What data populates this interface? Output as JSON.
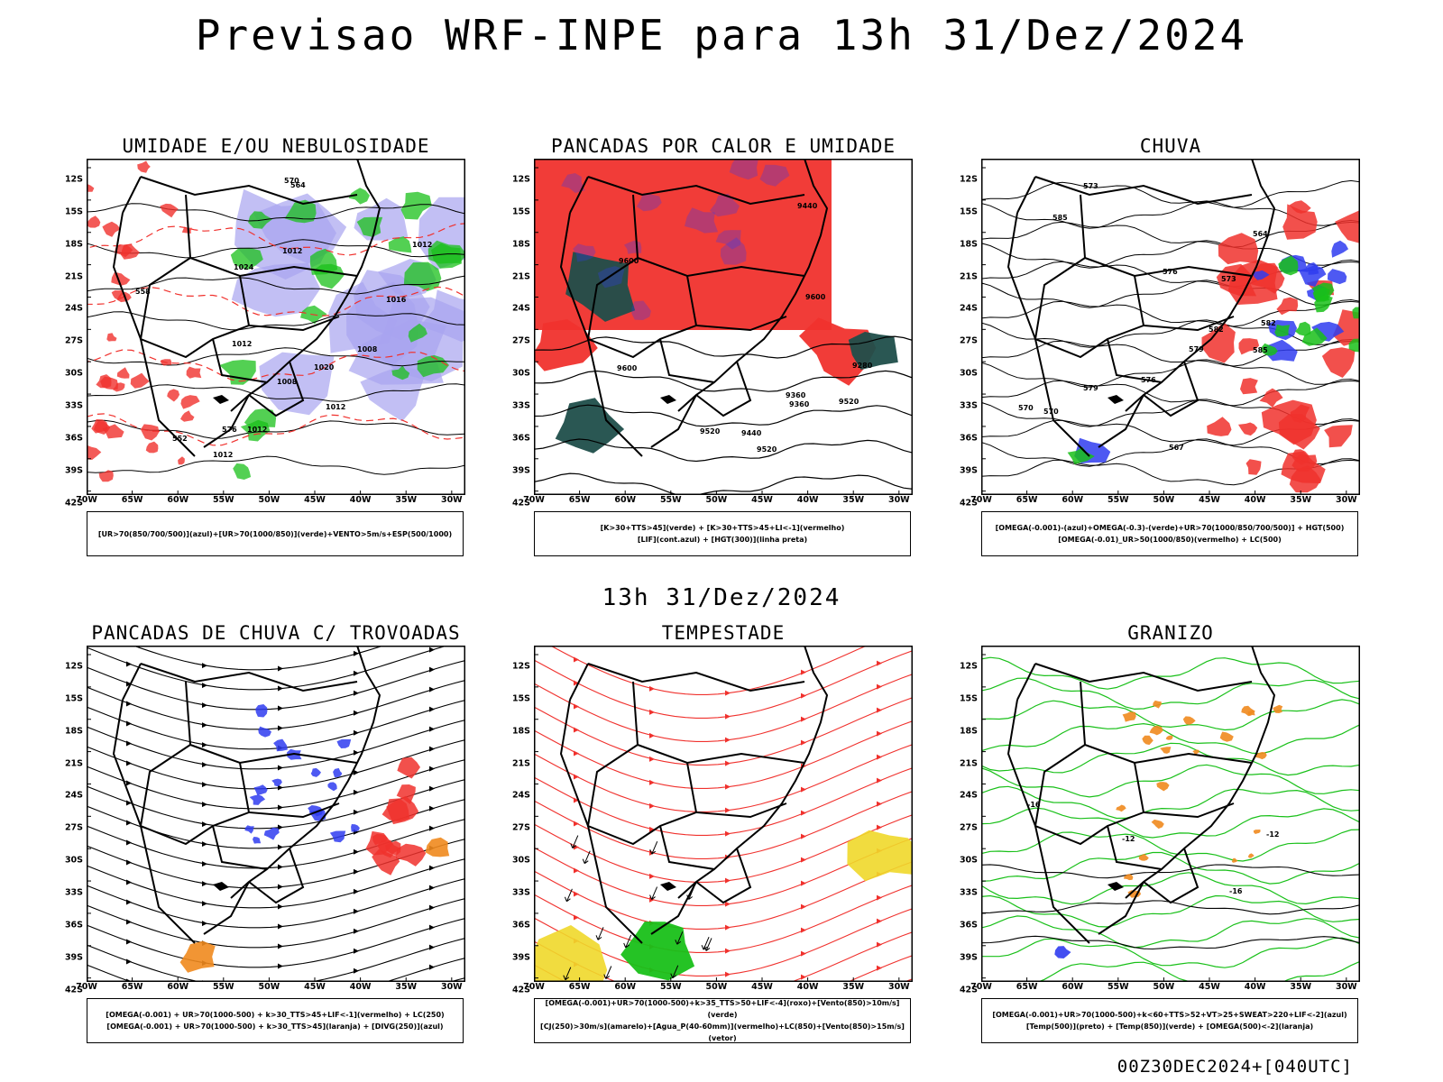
{
  "title": "Previsao WRF-INPE  para 13h 31/Dez/2024",
  "middle_title": "13h 31/Dez/2024",
  "footer": "00Z30DEC2024+[040UTC]",
  "axis": {
    "lat_labels": [
      "12S",
      "15S",
      "18S",
      "21S",
      "24S",
      "27S",
      "30S",
      "33S",
      "36S",
      "39S",
      "42S"
    ],
    "lon_labels": [
      "70W",
      "65W",
      "60W",
      "55W",
      "50W",
      "45W",
      "40W",
      "35W",
      "30W"
    ]
  },
  "panels": [
    {
      "title": "UMIDADE E/OU NEBULOSIDADE",
      "legend": [
        "[UR>70(850/700/500)](azul)+[UR>70(1000/850)](verde)+VENTO>5m/s+ESP(500/1000)"
      ],
      "contour_labels": [
        "1012",
        "1012",
        "1012",
        "1008",
        "1012",
        "1016",
        "1012",
        "1020",
        "1024",
        "1008",
        "1012",
        "576",
        "570",
        "564",
        "558",
        "552"
      ]
    },
    {
      "title": "PANCADAS POR CALOR E UMIDADE",
      "legend": [
        "[K>30+TTS>45](verde) + [K>30+TTS>45+LI<-1](vermelho)",
        "[LIF](cont.azul) + [HGT(300)](linha preta)"
      ],
      "contour_labels": [
        "9600",
        "9600",
        "9600",
        "9520",
        "9520",
        "9520",
        "9440",
        "9440",
        "9360",
        "9360",
        "9280"
      ]
    },
    {
      "title": "CHUVA",
      "legend": [
        "[OMEGA(-0.001)-(azul)+OMEGA(-0.3)-(verde)+UR>70(1000/850/700/500)] + HGT(500)",
        "[OMEGA(-0.01)_UR>50(1000/850)(vermelho) + LC(500)"
      ],
      "contour_labels": [
        "585",
        "585",
        "582",
        "582",
        "579",
        "579",
        "576",
        "576",
        "573",
        "573",
        "570",
        "570",
        "567",
        "564"
      ]
    },
    {
      "title": "PANCADAS DE CHUVA C/ TROVOADAS",
      "legend": [
        "[OMEGA(-0.001) + UR>70(1000-500) + k>30_TTS>45+LIF<-1](vermelho) + LC(250)",
        "[OMEGA(-0.001) + UR>70(1000-500) + k>30_TTS>45](laranja) + [DIVG(250)](azul)"
      ],
      "contour_labels": []
    },
    {
      "title": "TEMPESTADE",
      "legend": [
        "[OMEGA(-0.001)+UR>70(1000-500)+k>35_TTS>50+LIF<-4](roxo)+[Vento(850)>10m/s](verde)",
        "[CJ(250)>30m/s](amarelo)+[Agua_P(40-60mm)](vermelho)+LC(850)+[Vento(850)>15m/s](vetor)"
      ],
      "contour_labels": []
    },
    {
      "title": "GRANIZO",
      "legend": [
        "[OMEGA(-0.001)+UR>70(1000-500)+k<60+TTS>52+VT>25+SWEAT>220+LIF<-2](azul)",
        "[Temp(500)](preto) + [Temp(850)](verde) + [OMEGA(500)<-2](laranja)"
      ],
      "contour_labels": [
        "-12",
        "-12",
        "-16",
        "-16"
      ]
    }
  ],
  "colors": {
    "black": "#000000",
    "red": "#f0312d",
    "blue": "#2f3cf0",
    "green": "#19c019",
    "lavender": "#a8a4f0",
    "teal": "#1f4e4a",
    "orange": "#f08a1e",
    "yellow": "#f0d82a"
  }
}
